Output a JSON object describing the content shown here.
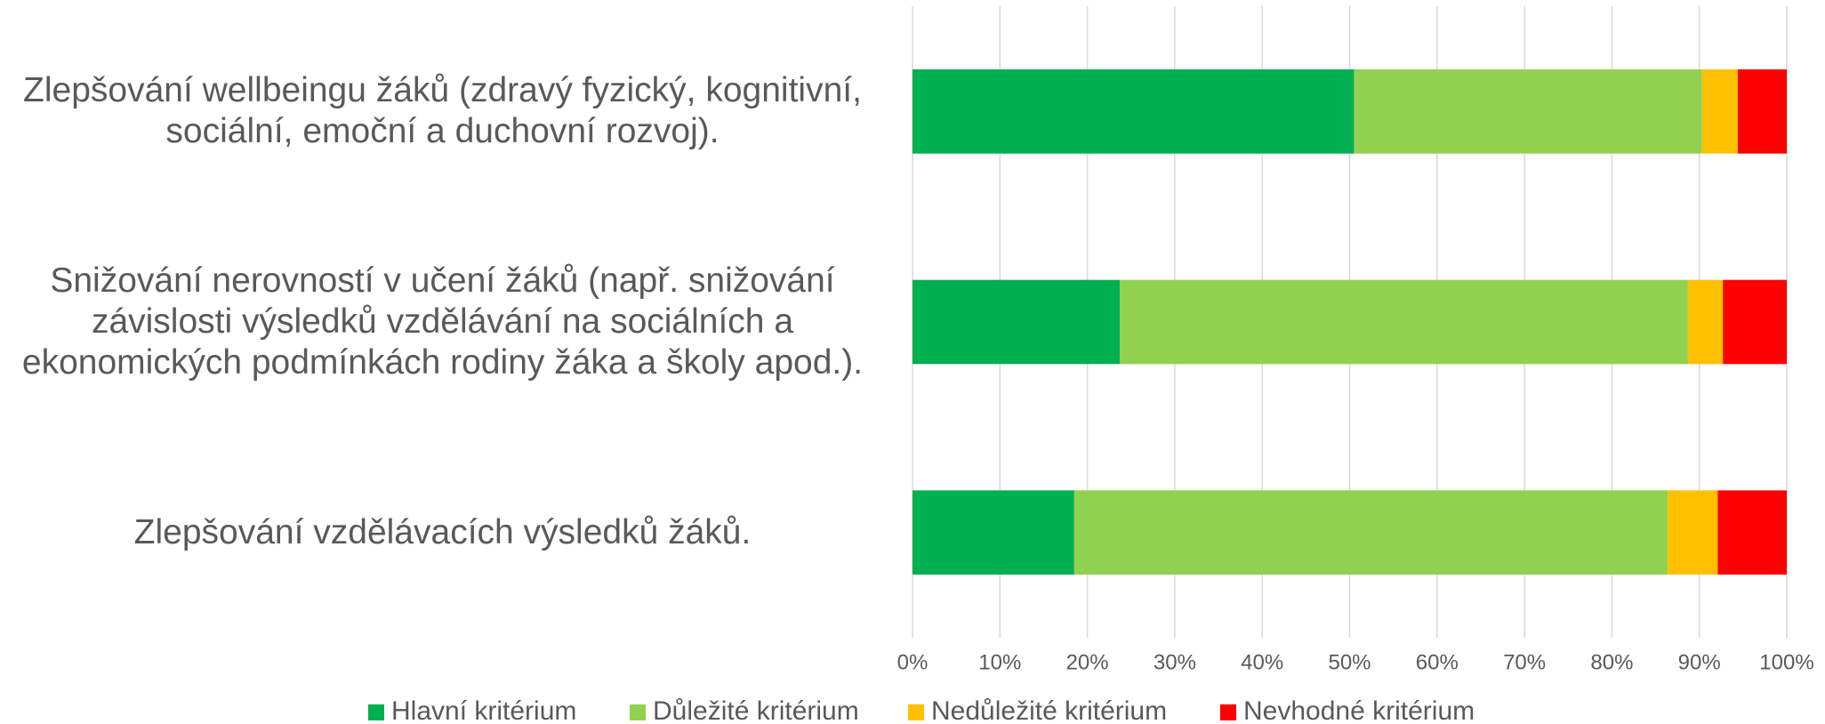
{
  "chart_data": {
    "type": "stacked_barh",
    "categories": [
      "Zlepšování wellbeingu žáků (zdravý fyzický, kognitivní, sociální, emoční a duchovní rozvoj).",
      "Snižování nerovností v učení žáků (např. snižování závislosti výsledků vzdělávání na sociálních a ekonomických podmínkách rodiny žáka a školy apod.).",
      "Zlepšování vzdělávacích výsledků žáků."
    ],
    "series": [
      {
        "name": "Hlavní kritérium",
        "color": "#00b050",
        "values": [
          50.5,
          23.7,
          18.5
        ]
      },
      {
        "name": "Důležité kritérium",
        "color": "#92d050",
        "values": [
          39.8,
          65.0,
          67.9
        ]
      },
      {
        "name": "Nedůležité kritérium",
        "color": "#ffc000",
        "values": [
          4.1,
          4.0,
          5.7
        ]
      },
      {
        "name": "Nevhodné kritérium",
        "color": "#ff0000",
        "values": [
          5.6,
          7.3,
          7.9
        ]
      }
    ],
    "xlim": [
      0,
      100
    ],
    "xticks": [
      {
        "value": 0,
        "label": "0%"
      },
      {
        "value": 10,
        "label": "10%"
      },
      {
        "value": 20,
        "label": "20%"
      },
      {
        "value": 30,
        "label": "30%"
      },
      {
        "value": 40,
        "label": "40%"
      },
      {
        "value": 50,
        "label": "50%"
      },
      {
        "value": 60,
        "label": "60%"
      },
      {
        "value": 70,
        "label": "70%"
      },
      {
        "value": 80,
        "label": "80%"
      },
      {
        "value": 90,
        "label": "90%"
      },
      {
        "value": 100,
        "label": "100%"
      }
    ],
    "grid": true,
    "legend": "bottom"
  }
}
